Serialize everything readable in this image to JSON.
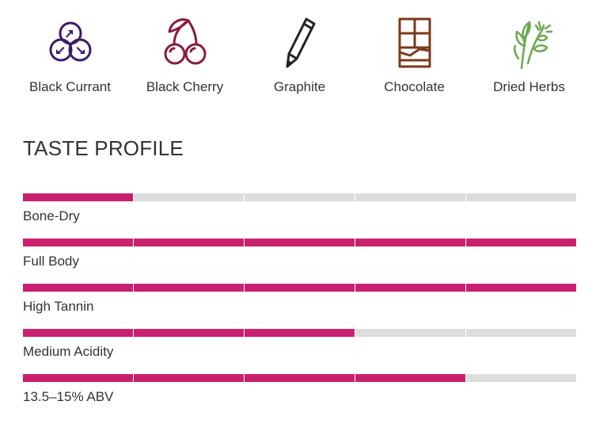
{
  "flavor_notes": [
    {
      "label": "Black Currant",
      "icon": "black-currant-icon",
      "color": "#3b1b6b"
    },
    {
      "label": "Black Cherry",
      "icon": "black-cherry-icon",
      "color": "#8a1c3c"
    },
    {
      "label": "Graphite",
      "icon": "graphite-pencil-icon",
      "color": "#222222"
    },
    {
      "label": "Chocolate",
      "icon": "chocolate-bar-icon",
      "color": "#7a3a1c"
    },
    {
      "label": "Dried Herbs",
      "icon": "dried-herbs-icon",
      "color": "#6aa84f"
    }
  ],
  "taste_profile": {
    "title": "TASTE PROFILE",
    "scale_max": 5,
    "active_color": "#c8206e",
    "inactive_color": "#dcdcdc",
    "traits": [
      {
        "label": "Bone-Dry",
        "level": 1
      },
      {
        "label": "Full Body",
        "level": 5
      },
      {
        "label": "High Tannin",
        "level": 5
      },
      {
        "label": "Medium Acidity",
        "level": 3
      },
      {
        "label": "13.5–15% ABV",
        "level": 4
      }
    ]
  }
}
